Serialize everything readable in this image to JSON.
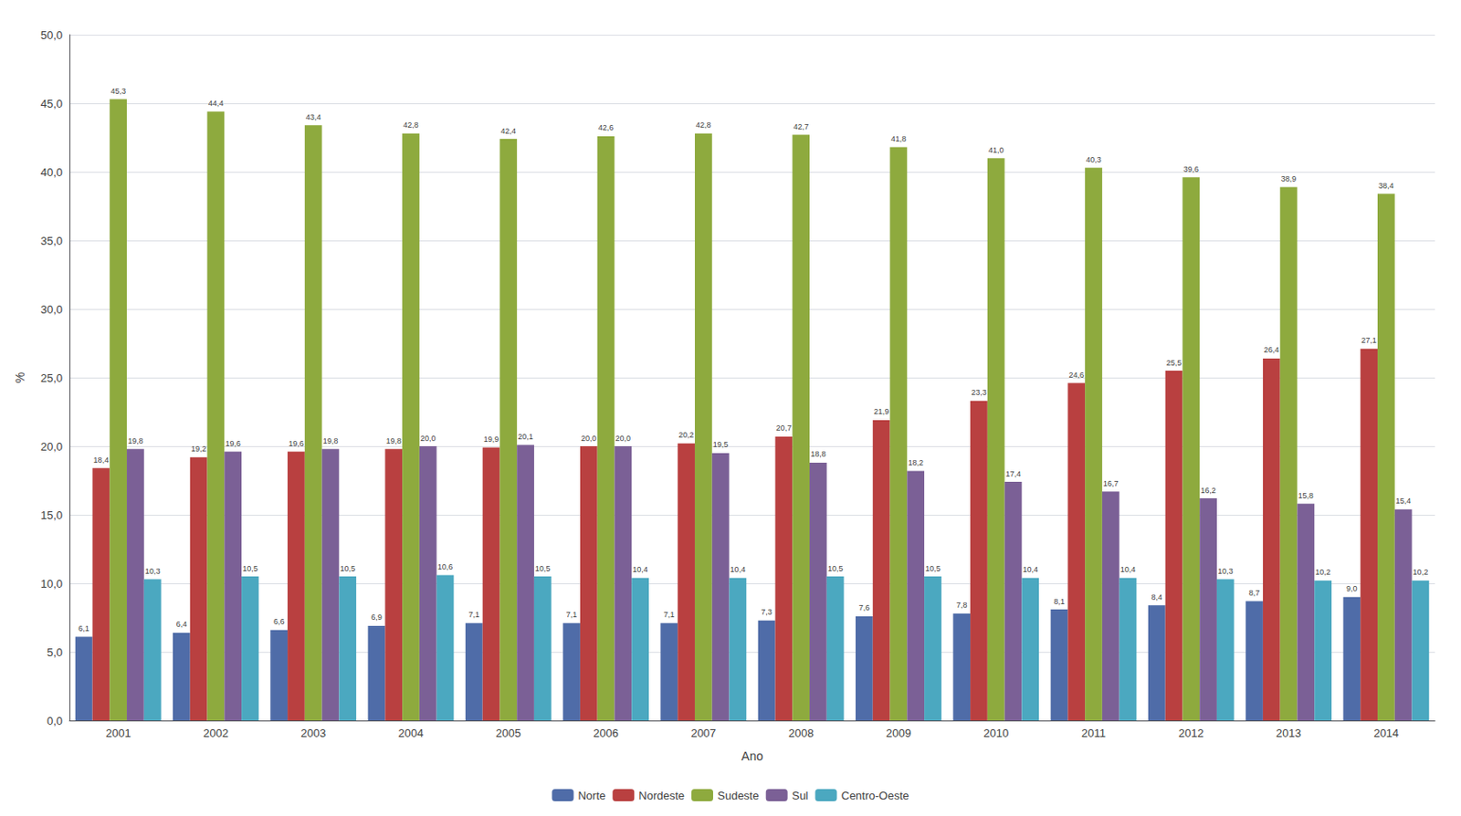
{
  "chart_data": {
    "type": "bar",
    "xlabel": "Ano",
    "ylabel": "%",
    "categories": [
      "2001",
      "2002",
      "2003",
      "2004",
      "2005",
      "2006",
      "2007",
      "2008",
      "2009",
      "2010",
      "2011",
      "2012",
      "2013",
      "2014"
    ],
    "series": [
      {
        "name": "Norte",
        "color": "#4F6CA8",
        "values": [
          6.1,
          6.4,
          6.6,
          6.9,
          7.1,
          7.1,
          7.1,
          7.3,
          7.6,
          7.8,
          8.1,
          8.4,
          8.7,
          9.0
        ],
        "value_labels": [
          "6,1",
          "6,4",
          "6,6",
          "6,9",
          "7,1",
          "7,1",
          "7,1",
          "7,3",
          "7,6",
          "7,8",
          "8,1",
          "8,4",
          "8,7",
          "9,0"
        ]
      },
      {
        "name": "Nordeste",
        "color": "#B94040",
        "values": [
          18.4,
          19.2,
          19.6,
          19.8,
          19.9,
          20.0,
          20.2,
          20.7,
          21.9,
          23.3,
          24.6,
          25.5,
          26.4,
          27.1
        ],
        "value_labels": [
          "18,4",
          "19,2",
          "19,6",
          "19,8",
          "19,9",
          "20,0",
          "20,2",
          "20,7",
          "21,9",
          "23,3",
          "24,6",
          "25,5",
          "26,4",
          "27,1"
        ]
      },
      {
        "name": "Sudeste",
        "color": "#8EAA3E",
        "values": [
          45.3,
          44.4,
          43.4,
          42.8,
          42.4,
          42.6,
          42.8,
          42.7,
          41.8,
          41.0,
          40.3,
          39.6,
          38.9,
          38.4
        ],
        "value_labels": [
          "45,3",
          "44,4",
          "43,4",
          "42,8",
          "42,4",
          "42,6",
          "42,8",
          "42,7",
          "41,8",
          "41,0",
          "40,3",
          "39,6",
          "38,9",
          "38,4"
        ]
      },
      {
        "name": "Sul",
        "color": "#7B6096",
        "values": [
          19.8,
          19.6,
          19.8,
          20.0,
          20.1,
          20.0,
          19.5,
          18.8,
          18.2,
          17.4,
          16.7,
          16.2,
          15.8,
          15.4
        ],
        "value_labels": [
          "19,8",
          "19,6",
          "19,8",
          "20,0",
          "20,1",
          "20,0",
          "19,5",
          "18,8",
          "18,2",
          "17,4",
          "16,7",
          "16,2",
          "15,8",
          "15,4"
        ]
      },
      {
        "name": "Centro-Oeste",
        "color": "#4BA8C0",
        "values": [
          10.3,
          10.5,
          10.5,
          10.6,
          10.5,
          10.4,
          10.4,
          10.5,
          10.5,
          10.4,
          10.4,
          10.3,
          10.2,
          10.2
        ],
        "value_labels": [
          "10,3",
          "10,5",
          "10,5",
          "10,6",
          "10,5",
          "10,4",
          "10,4",
          "10,5",
          "10,5",
          "10,4",
          "10,4",
          "10,3",
          "10,2",
          "10,2"
        ]
      }
    ],
    "ylim": [
      0,
      50
    ],
    "yticks": [
      {
        "value": 0.0,
        "label": "0,0"
      },
      {
        "value": 5.0,
        "label": "5,0"
      },
      {
        "value": 10.0,
        "label": "10,0"
      },
      {
        "value": 15.0,
        "label": "15,0"
      },
      {
        "value": 20.0,
        "label": "20,0"
      },
      {
        "value": 25.0,
        "label": "25,0"
      },
      {
        "value": 30.0,
        "label": "30,0"
      },
      {
        "value": 35.0,
        "label": "35,0"
      },
      {
        "value": 40.0,
        "label": "40,0"
      },
      {
        "value": 45.0,
        "label": "45,0"
      },
      {
        "value": 50.0,
        "label": "50,0"
      }
    ],
    "grid": true,
    "legend": "bottom",
    "data_labels": true
  }
}
